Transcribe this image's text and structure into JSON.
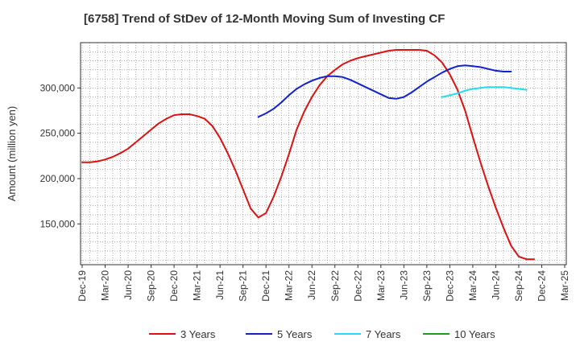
{
  "chart_data": {
    "type": "line",
    "title": "[6758]  Trend of StDev of 12-Month Moving Sum of Investing CF",
    "ylabel": "Amount (million yen)",
    "xlabel": "",
    "x_ticks": [
      "Dec-19",
      "Mar-20",
      "Jun-20",
      "Sep-20",
      "Dec-20",
      "Mar-21",
      "Jun-21",
      "Sep-21",
      "Dec-21",
      "Mar-22",
      "Jun-22",
      "Sep-22",
      "Dec-22",
      "Mar-23",
      "Jun-23",
      "Sep-23",
      "Dec-23",
      "Mar-24",
      "Jun-24",
      "Sep-24",
      "Dec-24",
      "Mar-25"
    ],
    "y_ticks": [
      150000,
      200000,
      250000,
      300000
    ],
    "y_tick_labels": [
      "150,000",
      "200,000",
      "250,000",
      "300,000"
    ],
    "ylim": [
      105000,
      350000
    ],
    "grid": true,
    "legend_position": "bottom",
    "series": [
      {
        "name": "3 Years",
        "color": "#dd1111",
        "start": "Dec-19",
        "values": [
          218000,
          218000,
          219000,
          221000,
          224000,
          228000,
          233000,
          240000,
          247000,
          254000,
          261000,
          266000,
          270000,
          271000,
          271000,
          269000,
          266000,
          258000,
          245000,
          228000,
          209000,
          188000,
          167000,
          157000,
          162000,
          180000,
          202000,
          227000,
          254000,
          274000,
          290000,
          303000,
          313000,
          320000,
          326000,
          330000,
          333000,
          335000,
          337000,
          339000,
          341000,
          342000,
          342000,
          342000,
          342000,
          341000,
          336000,
          328000,
          315000,
          298000,
          275000,
          246000,
          218000,
          192000,
          168000,
          146000,
          126000,
          114000,
          111000,
          111000
        ]
      },
      {
        "name": "5 Years",
        "color": "#1122cc",
        "start": "Nov-21",
        "values": [
          268000,
          272000,
          277000,
          284000,
          292000,
          299000,
          304000,
          308000,
          311000,
          313000,
          313000,
          312000,
          309000,
          305000,
          301000,
          297000,
          293000,
          289000,
          288000,
          290000,
          295000,
          301000,
          307000,
          312000,
          317000,
          321000,
          324000,
          325000,
          324000,
          323000,
          321000,
          319000,
          318000,
          318000
        ]
      },
      {
        "name": "7 Years",
        "color": "#22ddee",
        "start": "Nov-23",
        "values": [
          290000,
          292000,
          294000,
          297000,
          299000,
          300000,
          301000,
          301000,
          301000,
          300000,
          299000,
          298000
        ]
      },
      {
        "name": "10 Years",
        "color": "#229922",
        "start": "Nov-23",
        "values": []
      }
    ]
  }
}
